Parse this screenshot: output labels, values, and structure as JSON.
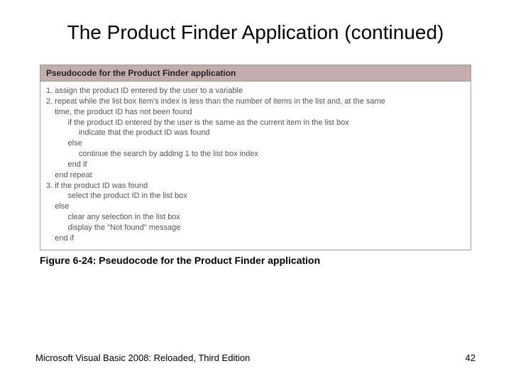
{
  "title": "The Product Finder Application (continued)",
  "figure": {
    "header": "Pseudocode for the Product Finder application",
    "body": "1. assign the product ID entered by the user to a variable\n2. repeat while the list box item's index is less than the number of items in the list and, at the same\n    time, the product ID has not been found\n          if the product ID entered by the user is the same as the current item in the list box\n               indicate that the product ID was found\n          else\n               continue the search by adding 1 to the list box index\n          end if\n    end repeat\n3. if the product ID was found\n          select the product ID in the list box\n    else\n          clear any selection in the list box\n          display the \"Not found\" message\n    end if",
    "header_bg": "#c4aead",
    "border_color": "#999999",
    "body_text_color": "#555555"
  },
  "caption": "Figure 6-24: Pseudocode for the Product Finder application",
  "footer_left": "Microsoft Visual Basic 2008: Reloaded, Third Edition",
  "page_number": "42"
}
